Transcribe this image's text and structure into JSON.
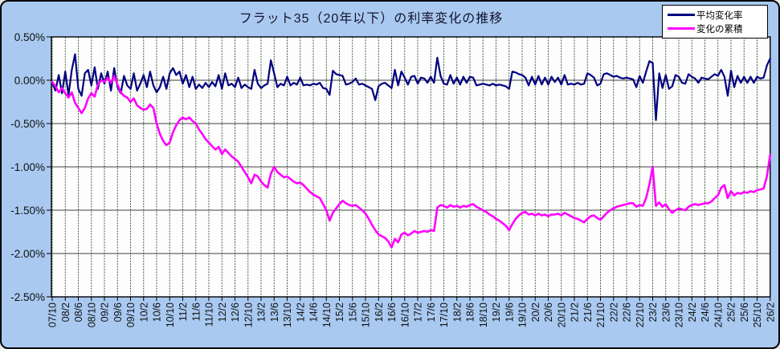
{
  "window": {
    "background_color": "#A9C9F0",
    "plot_background_color": "#FDFDFD"
  },
  "chart_data": {
    "type": "line",
    "title": "フラット35（20年以下）の利率変化の推移",
    "xlabel": "",
    "ylabel": "",
    "x_unit": "year/month (YY/M), monthly data, tick labels every 4 months",
    "x_range": [
      "07/10",
      "26/2"
    ],
    "ylim": [
      -2.5,
      0.5
    ],
    "y_tick_step": 0.5,
    "y_ticks": [
      "0.50%",
      "0.00%",
      "-0.50%",
      "-1.00%",
      "-1.50%",
      "-2.00%",
      "-2.50%"
    ],
    "grid": "on",
    "legend_position": "top-right",
    "x_tick_labels": [
      "07/10",
      "08/2",
      "08/6",
      "08/10",
      "09/2",
      "09/6",
      "09/10",
      "10/2",
      "10/6",
      "10/10",
      "11/2",
      "11/6",
      "11/10",
      "12/2",
      "12/6",
      "12/10",
      "13/2",
      "13/6",
      "13/10",
      "14/2",
      "14/6",
      "14/10",
      "15/2",
      "15/6",
      "15/10",
      "16/2",
      "16/6",
      "16/10",
      "17/2",
      "17/6",
      "17/10",
      "18/2",
      "18/6",
      "18/10",
      "19/2",
      "19/6",
      "19/10",
      "20/2",
      "20/6",
      "20/10",
      "21/2",
      "21/6",
      "21/10",
      "22/2",
      "22/6",
      "22/10",
      "23/2",
      "23/6",
      "23/10",
      "24/2",
      "24/6",
      "24/10",
      "25/2",
      "25/6",
      "25/10",
      "26/2"
    ],
    "series": [
      {
        "name": "平均変化率",
        "color": "#000080",
        "values": [
          -0.03,
          -0.12,
          0.06,
          -0.15,
          0.1,
          -0.17,
          0.12,
          0.3,
          -0.1,
          -0.18,
          0.08,
          0.12,
          -0.06,
          0.15,
          -0.1,
          0.08,
          -0.04,
          0.1,
          -0.12,
          0.14,
          -0.08,
          -0.15,
          0.05,
          -0.06,
          -0.1,
          0.08,
          -0.12,
          -0.04,
          0.06,
          -0.08,
          0.1,
          -0.06,
          -0.14,
          -0.08,
          0.04,
          -0.1,
          0.08,
          0.14,
          0.06,
          0.1,
          -0.04,
          0.06,
          -0.08,
          0.04,
          -0.1,
          -0.05,
          -0.09,
          -0.03,
          -0.08,
          -0.02,
          -0.07,
          0.06,
          -0.1,
          0.08,
          -0.06,
          -0.04,
          -0.08,
          0.03,
          -0.09,
          -0.05,
          -0.08,
          -0.1,
          0.12,
          -0.04,
          -0.09,
          -0.06,
          -0.04,
          0.23,
          0.08,
          -0.08,
          -0.04,
          -0.06,
          0.04,
          -0.06,
          -0.03,
          -0.05,
          0.03,
          -0.06,
          -0.05,
          -0.06,
          -0.04,
          -0.05,
          -0.03,
          -0.09,
          -0.1,
          -0.17,
          0.11,
          0.07,
          0.06,
          0.05,
          -0.05,
          -0.04,
          -0.02,
          0.02,
          -0.05,
          -0.04,
          -0.06,
          -0.08,
          -0.1,
          -0.23,
          -0.07,
          -0.04,
          -0.03,
          -0.06,
          -0.09,
          0.12,
          -0.06,
          0.1,
          0.03,
          -0.05,
          0.04,
          0.05,
          -0.04,
          0.03,
          0.02,
          -0.03,
          0.04,
          -0.03,
          0.26,
          0.05,
          -0.04,
          -0.05,
          0.06,
          -0.04,
          0.03,
          -0.05,
          0.04,
          -0.03,
          0.04,
          0.03,
          -0.06,
          -0.05,
          -0.04,
          -0.05,
          -0.06,
          -0.04,
          -0.06,
          -0.05,
          -0.06,
          -0.07,
          -0.1,
          0.1,
          0.09,
          0.07,
          0.06,
          0.03,
          -0.06,
          0.04,
          -0.05,
          0.05,
          -0.05,
          0.03,
          -0.05,
          0.04,
          -0.02,
          0.03,
          -0.05,
          0.06,
          -0.05,
          -0.04,
          -0.05,
          -0.03,
          -0.05,
          -0.04,
          0.08,
          0.06,
          0.03,
          -0.06,
          -0.04,
          0.07,
          0.08,
          0.06,
          0.04,
          0.05,
          0.03,
          0.02,
          0.03,
          0.02,
          0.01,
          -0.08,
          0.05,
          -0.03,
          0.1,
          0.22,
          0.2,
          -0.46,
          0.08,
          -0.09,
          0.06,
          -0.1,
          -0.07,
          0.06,
          0.04,
          -0.03,
          -0.04,
          0.07,
          0.04,
          0.02,
          -0.03,
          0.03,
          0.02,
          0.01,
          0.04,
          0.07,
          0.05,
          0.12,
          0.04,
          -0.18,
          0.11,
          -0.08,
          0.05,
          -0.03,
          0.04,
          -0.03,
          0.04,
          -0.03,
          0.04,
          0.02,
          0.03,
          0.17,
          0.25
        ]
      },
      {
        "name": "変化の累積",
        "color": "#FF00FF",
        "values": [
          -0.02,
          -0.07,
          -0.14,
          -0.09,
          -0.15,
          -0.2,
          -0.14,
          -0.26,
          -0.32,
          -0.38,
          -0.32,
          -0.21,
          -0.15,
          -0.19,
          -0.05,
          0.0,
          -0.02,
          0.03,
          -0.03,
          0.05,
          -0.05,
          -0.14,
          -0.18,
          -0.2,
          -0.25,
          -0.21,
          -0.29,
          -0.32,
          -0.34,
          -0.33,
          -0.28,
          -0.32,
          -0.5,
          -0.62,
          -0.7,
          -0.75,
          -0.72,
          -0.6,
          -0.52,
          -0.46,
          -0.43,
          -0.45,
          -0.43,
          -0.47,
          -0.5,
          -0.57,
          -0.62,
          -0.68,
          -0.72,
          -0.76,
          -0.8,
          -0.77,
          -0.85,
          -0.8,
          -0.84,
          -0.88,
          -0.91,
          -0.94,
          -1.0,
          -1.06,
          -1.12,
          -1.19,
          -1.09,
          -1.11,
          -1.17,
          -1.21,
          -1.24,
          -1.08,
          -1.0,
          -1.06,
          -1.09,
          -1.12,
          -1.11,
          -1.14,
          -1.17,
          -1.19,
          -1.18,
          -1.21,
          -1.25,
          -1.29,
          -1.32,
          -1.34,
          -1.36,
          -1.43,
          -1.5,
          -1.62,
          -1.53,
          -1.48,
          -1.43,
          -1.39,
          -1.42,
          -1.44,
          -1.45,
          -1.44,
          -1.47,
          -1.5,
          -1.54,
          -1.6,
          -1.67,
          -1.73,
          -1.78,
          -1.8,
          -1.82,
          -1.86,
          -1.93,
          -1.83,
          -1.87,
          -1.78,
          -1.76,
          -1.79,
          -1.77,
          -1.74,
          -1.76,
          -1.75,
          -1.74,
          -1.75,
          -1.73,
          -1.74,
          -1.47,
          -1.44,
          -1.45,
          -1.47,
          -1.44,
          -1.46,
          -1.45,
          -1.47,
          -1.45,
          -1.46,
          -1.44,
          -1.43,
          -1.46,
          -1.48,
          -1.5,
          -1.52,
          -1.55,
          -1.57,
          -1.6,
          -1.62,
          -1.65,
          -1.68,
          -1.73,
          -1.66,
          -1.6,
          -1.56,
          -1.53,
          -1.52,
          -1.55,
          -1.54,
          -1.56,
          -1.54,
          -1.56,
          -1.55,
          -1.57,
          -1.55,
          -1.55,
          -1.54,
          -1.56,
          -1.53,
          -1.55,
          -1.57,
          -1.59,
          -1.6,
          -1.62,
          -1.64,
          -1.6,
          -1.57,
          -1.56,
          -1.59,
          -1.61,
          -1.57,
          -1.53,
          -1.5,
          -1.48,
          -1.46,
          -1.45,
          -1.44,
          -1.43,
          -1.42,
          -1.42,
          -1.46,
          -1.44,
          -1.45,
          -1.36,
          -1.2,
          -1.0,
          -1.45,
          -1.41,
          -1.46,
          -1.43,
          -1.49,
          -1.53,
          -1.5,
          -1.48,
          -1.49,
          -1.5,
          -1.46,
          -1.44,
          -1.43,
          -1.44,
          -1.43,
          -1.42,
          -1.42,
          -1.4,
          -1.36,
          -1.33,
          -1.24,
          -1.21,
          -1.36,
          -1.28,
          -1.33,
          -1.3,
          -1.31,
          -1.29,
          -1.3,
          -1.28,
          -1.29,
          -1.27,
          -1.26,
          -1.25,
          -1.11,
          -0.86
        ]
      }
    ],
    "style": {
      "vertical_gridline_color": "#33502e",
      "horizontal_gridline_color": "#000000",
      "axis_text_color": "#111111"
    }
  }
}
